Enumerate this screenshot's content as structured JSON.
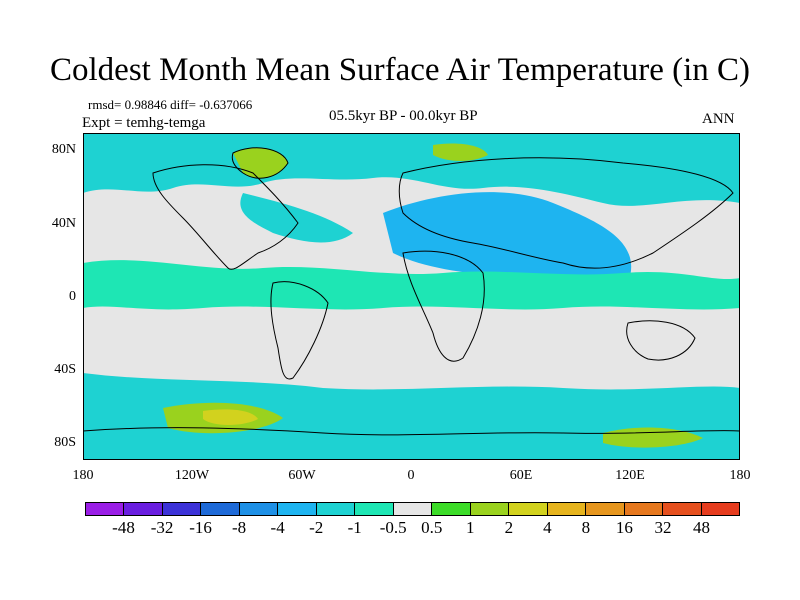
{
  "title": "Coldest Month Mean Surface Air Temperature (in C)",
  "stats": "rmsd= 0.98846 diff= -0.637066",
  "experiment": "Expt = temhg-temga",
  "period": "05.5kyr BP - 00.0kyr BP",
  "season": "ANN",
  "lat_labels": [
    "80N",
    "40N",
    "0",
    "40S",
    "80S"
  ],
  "lon_labels": [
    "180",
    "120W",
    "60W",
    "0",
    "60E",
    "120E",
    "180"
  ],
  "colorbar": {
    "colors": [
      "#9a1ee6",
      "#6a1ee0",
      "#3c32d8",
      "#1e6ad8",
      "#1e90e6",
      "#1eb4f0",
      "#1ed2d2",
      "#1ee6b4",
      "#e6e6e6",
      "#3cdc28",
      "#9ad21e",
      "#d2d21e",
      "#e6b41e",
      "#e6961e",
      "#e6781e",
      "#e6501e",
      "#e63c1e"
    ],
    "labels": [
      "-48",
      "-32",
      "-16",
      "-8",
      "-4",
      "-2",
      "-1",
      "-0.5",
      "0.5",
      "1",
      "2",
      "4",
      "8",
      "16",
      "32",
      "48"
    ]
  },
  "map": {
    "ocean_light": "#e6e6e6",
    "cyan": "#1ed2d2",
    "teal": "#1ee6b4",
    "blue": "#1eb4f0",
    "green": "#9ad21e",
    "yellow": "#d2d21e"
  }
}
